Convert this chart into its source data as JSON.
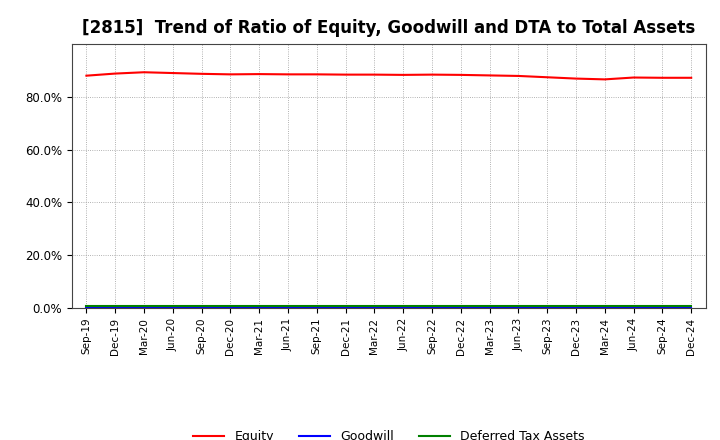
{
  "title": "[2815]  Trend of Ratio of Equity, Goodwill and DTA to Total Assets",
  "x_labels": [
    "Sep-19",
    "Dec-19",
    "Mar-20",
    "Jun-20",
    "Sep-20",
    "Dec-20",
    "Mar-21",
    "Jun-21",
    "Sep-21",
    "Dec-21",
    "Mar-22",
    "Jun-22",
    "Sep-22",
    "Dec-22",
    "Mar-23",
    "Jun-23",
    "Sep-23",
    "Dec-23",
    "Mar-24",
    "Jun-24",
    "Sep-24",
    "Dec-24"
  ],
  "equity": [
    0.88,
    0.888,
    0.893,
    0.89,
    0.887,
    0.885,
    0.886,
    0.885,
    0.885,
    0.884,
    0.884,
    0.883,
    0.884,
    0.883,
    0.881,
    0.879,
    0.874,
    0.869,
    0.866,
    0.873,
    0.872,
    0.872
  ],
  "goodwill": [
    0.001,
    0.001,
    0.001,
    0.001,
    0.001,
    0.001,
    0.001,
    0.001,
    0.001,
    0.001,
    0.001,
    0.001,
    0.001,
    0.001,
    0.001,
    0.001,
    0.001,
    0.001,
    0.001,
    0.001,
    0.001,
    0.001
  ],
  "dta": [
    0.006,
    0.006,
    0.006,
    0.006,
    0.006,
    0.006,
    0.006,
    0.006,
    0.006,
    0.006,
    0.006,
    0.006,
    0.006,
    0.006,
    0.006,
    0.006,
    0.006,
    0.006,
    0.006,
    0.006,
    0.006,
    0.006
  ],
  "equity_color": "#ff0000",
  "goodwill_color": "#0000ff",
  "dta_color": "#008000",
  "ylim": [
    0.0,
    1.0
  ],
  "yticks": [
    0.0,
    0.2,
    0.4,
    0.6,
    0.8
  ],
  "background_color": "#ffffff",
  "grid_color": "#999999",
  "title_fontsize": 12,
  "legend_labels": [
    "Equity",
    "Goodwill",
    "Deferred Tax Assets"
  ]
}
